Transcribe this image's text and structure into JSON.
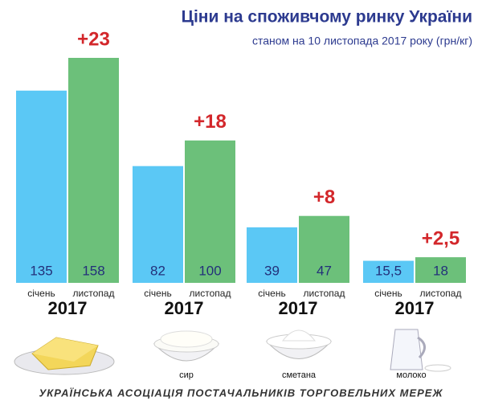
{
  "chart_data": {
    "type": "bar",
    "title": "Ціни на споживчому ринку України",
    "subtitle": "станом на 10 листопада 2017 року (грн/кг)",
    "categories": [
      null,
      "сир",
      "сметана",
      "молоко"
    ],
    "year": "2017",
    "series": [
      {
        "name": "січень",
        "color": "#5bc8f5",
        "values": [
          135,
          82,
          39,
          15.5
        ],
        "value_labels": [
          "135",
          "82",
          "39",
          "15,5"
        ]
      },
      {
        "name": "листопад",
        "color": "#6cc07a",
        "values": [
          158,
          100,
          47,
          18
        ]
      }
    ],
    "annotations": [
      "+23",
      "+18",
      "+8",
      "+2,5"
    ],
    "source": "УКРАЇНСЬКА АСОЦІАЦІЯ ПОСТАЧАЛЬНИКІВ ТОРГОВЕЛЬНИХ МЕРЕЖ"
  }
}
